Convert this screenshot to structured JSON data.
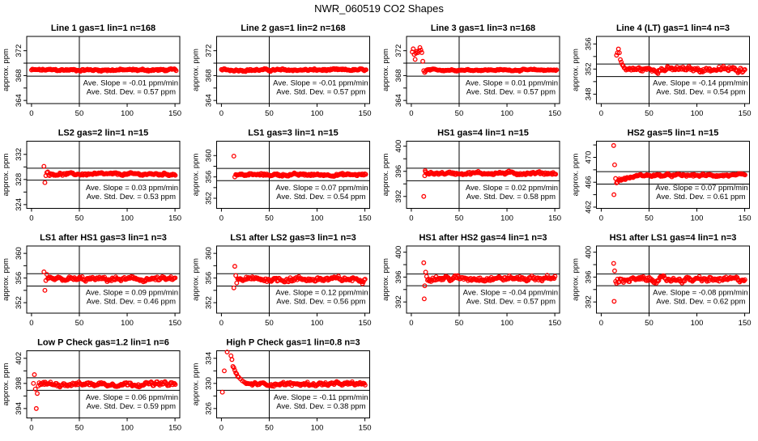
{
  "chart_data": {
    "type": "scatter",
    "title": "NWR_060519  CO2 Shapes",
    "ylabel": "approx. ppm",
    "xlim": [
      -5,
      155
    ],
    "xticks": [
      "0",
      "50",
      "100",
      "150"
    ],
    "vline_x": 50,
    "marker_color": "#ff0000",
    "panels": [
      {
        "title": "Line 1 gas=1 lin=1 n=168",
        "ylim": [
          363.5,
          374.3
        ],
        "yticks": [
          364,
          366,
          368,
          370,
          372
        ],
        "ylabels": [
          "364",
          "368",
          "372"
        ],
        "hlines": [
          370.0,
          367.9
        ],
        "early": [],
        "steady": {
          "from": 0,
          "to": 152,
          "mean": 368.9,
          "spread": 0.22
        },
        "slope_text": "Ave. Slope =  -0.01  ppm/min",
        "std_text": "Ave. Std. Dev. =  0.57  ppm"
      },
      {
        "title": "Line 2 gas=1 lin=2 n=168",
        "ylim": [
          363.5,
          374.3
        ],
        "yticks": [
          364,
          366,
          368,
          370,
          372
        ],
        "ylabels": [
          "364",
          "368",
          "372"
        ],
        "hlines": [
          370.0,
          367.9
        ],
        "early": [],
        "steady": {
          "from": 0,
          "to": 152,
          "mean": 368.9,
          "spread": 0.22
        },
        "slope_text": "Ave. Slope =  -0.01  ppm/min",
        "std_text": "Ave. Std. Dev. =  0.57  ppm"
      },
      {
        "title": "Line 3 gas=1 lin=3 n=168",
        "ylim": [
          363.5,
          374.3
        ],
        "yticks": [
          364,
          366,
          368,
          370,
          372
        ],
        "ylabels": [
          "364",
          "368",
          "372"
        ],
        "hlines": [
          370.0,
          367.9
        ],
        "early": [
          [
            1,
            371.8
          ],
          [
            2,
            372.3
          ],
          [
            3,
            371.4
          ],
          [
            4,
            370.6
          ],
          [
            5,
            371.6
          ],
          [
            6,
            371.9
          ],
          [
            7,
            371.7
          ],
          [
            8,
            372.0
          ],
          [
            9,
            372.5
          ],
          [
            10,
            372.1
          ],
          [
            11,
            371.7
          ],
          [
            12,
            370.3
          ],
          [
            13,
            368.8
          ],
          [
            14,
            368.5
          ],
          [
            15,
            368.7
          ]
        ],
        "steady": {
          "from": 16,
          "to": 152,
          "mean": 368.9,
          "spread": 0.15
        },
        "slope_text": "Ave. Slope =  0.01  ppm/min",
        "std_text": "Ave. Std. Dev. =  0.57  ppm"
      },
      {
        "title": "Line 4 (LT) gas=1 lin=4 n=3",
        "ylim": [
          346.5,
          357.2
        ],
        "yticks": [
          348,
          350,
          352,
          354,
          356
        ],
        "ylabels": [
          "348",
          "352",
          "356"
        ],
        "hlines": [
          352.8,
          350.8
        ],
        "early": [
          [
            16,
            354.2
          ],
          [
            17,
            354.6
          ],
          [
            18,
            355.2
          ],
          [
            19,
            354.6
          ],
          [
            20,
            353.5
          ],
          [
            21,
            353.1
          ],
          [
            22,
            352.7
          ],
          [
            23,
            352.5
          ],
          [
            24,
            352.2
          ],
          [
            25,
            352.1
          ]
        ],
        "steady": {
          "from": 26,
          "to": 151,
          "mean": 351.95,
          "spread": 0.5
        },
        "slope_text": "Ave. Slope =  -0.14  ppm/min",
        "std_text": "Ave. Std. Dev. =  0.54  ppm"
      },
      {
        "title": "LS2 gas=2 lin=1 n=15",
        "ylim": [
          323.4,
          334.1
        ],
        "yticks": [
          324,
          326,
          328,
          330,
          332
        ],
        "ylabels": [
          "324",
          "328",
          "332"
        ],
        "hlines": [
          329.8,
          327.9
        ],
        "early": [
          [
            13,
            330.1
          ],
          [
            14,
            327.5
          ],
          [
            15,
            328.6
          ],
          [
            16,
            329.1
          ],
          [
            17,
            329.2
          ]
        ],
        "steady": {
          "from": 18,
          "to": 151,
          "mean": 328.85,
          "spread": 0.25
        },
        "slope_text": "Ave. Slope =  0.03  ppm/min",
        "std_text": "Ave. Std. Dev. =  0.53  ppm"
      },
      {
        "title": "LS1 gas=3 lin=1 n=15",
        "ylim": [
          350.1,
          362.7
        ],
        "yticks": [
          352,
          354,
          356,
          358,
          360
        ],
        "ylabels": [
          "352",
          "356",
          "360"
        ],
        "hlines": [
          357.6,
          355.3
        ],
        "early": [
          [
            13,
            359.9
          ],
          [
            14,
            356.0
          ]
        ],
        "steady": {
          "from": 15,
          "to": 151,
          "mean": 356.4,
          "spread": 0.3
        },
        "slope_text": "Ave. Slope =  0.07  ppm/min",
        "std_text": "Ave. Std. Dev. =  0.54  ppm"
      },
      {
        "title": "HS1 gas=4 lin=1 n=15",
        "ylim": [
          390.1,
          400.8
        ],
        "yticks": [
          392,
          394,
          396,
          398,
          400
        ],
        "ylabels": [
          "392",
          "396",
          "400"
        ],
        "hlines": [
          396.5,
          394.5
        ],
        "early": [
          [
            13,
            392.0
          ],
          [
            14,
            395.3
          ],
          [
            14.5,
            396.1
          ]
        ],
        "steady": {
          "from": 15,
          "to": 151,
          "mean": 395.7,
          "spread": 0.3
        },
        "slope_text": "Ave. Slope =  0.02  ppm/min",
        "std_text": "Ave. Std. Dev. =  0.58  ppm"
      },
      {
        "title": "HS2 gas=5 lin=1 n=15",
        "ylim": [
          461.8,
          472.6
        ],
        "yticks": [
          462,
          464,
          466,
          468,
          470,
          472
        ],
        "ylabels": [
          "462",
          "466",
          "470"
        ],
        "hlines": [
          467.7,
          465.7
        ],
        "early": [
          [
            13,
            471.9
          ],
          [
            14,
            468.8
          ],
          [
            13.3,
            464.0
          ],
          [
            15,
            466.6
          ],
          [
            16,
            465.9
          ],
          [
            17,
            466.0
          ]
        ],
        "steady": {
          "from": 18,
          "to": 151,
          "mean": 467.1,
          "spread": 0.25,
          "ramp_from": 466.3,
          "ramp_len": 22
        },
        "slope_text": "Ave. Slope =  0.07  ppm/min",
        "std_text": "Ave. Std. Dev. =  0.61  ppm"
      },
      {
        "title": "LS1 after HS1 gas=3 lin=1 n=3",
        "ylim": [
          350.3,
          361.2
        ],
        "yticks": [
          352,
          354,
          356,
          358,
          360
        ],
        "ylabels": [
          "352",
          "356",
          "360"
        ],
        "hlines": [
          356.7,
          354.7
        ],
        "early": [
          [
            13,
            357.0
          ],
          [
            14,
            354.0
          ],
          [
            15,
            355.6
          ],
          [
            16,
            356.6
          ]
        ],
        "steady": {
          "from": 17,
          "to": 151,
          "mean": 355.8,
          "spread": 0.45
        },
        "slope_text": "Ave. Slope =  0.09  ppm/min",
        "std_text": "Ave. Std. Dev. =  0.46  ppm"
      },
      {
        "title": "LS1 after LS2 gas=3 lin=1 n=3",
        "ylim": [
          350.3,
          361.2
        ],
        "yticks": [
          352,
          354,
          356,
          358,
          360
        ],
        "ylabels": [
          "352",
          "356",
          "360"
        ],
        "hlines": [
          356.7,
          354.7
        ],
        "early": [
          [
            13,
            354.4
          ],
          [
            14,
            357.9
          ],
          [
            15,
            356.4
          ],
          [
            16,
            355.2
          ]
        ],
        "steady": {
          "from": 17,
          "to": 151,
          "mean": 355.8,
          "spread": 0.5
        },
        "slope_text": "Ave. Slope =  0.12  ppm/min",
        "std_text": "Ave. Std. Dev. =  0.56  ppm"
      },
      {
        "title": "HS1 after HS2 gas=4 lin=1 n=3",
        "ylim": [
          390.2,
          401.0
        ],
        "yticks": [
          392,
          394,
          396,
          398,
          400
        ],
        "ylabels": [
          "392",
          "396",
          "400"
        ],
        "hlines": [
          396.5,
          394.6
        ],
        "early": [
          [
            13,
            398.3
          ],
          [
            13.5,
            392.5
          ],
          [
            14,
            394.6
          ],
          [
            15,
            396.8
          ],
          [
            16,
            396.1
          ]
        ],
        "steady": {
          "from": 17,
          "to": 151,
          "mean": 395.8,
          "spread": 0.5
        },
        "slope_text": "Ave. Slope =  -0.04  ppm/min",
        "std_text": "Ave. Std. Dev. =  0.57  ppm"
      },
      {
        "title": "HS1 after LS1 gas=4 lin=1 n=3",
        "ylim": [
          390.2,
          401.0
        ],
        "yticks": [
          392,
          394,
          396,
          398,
          400
        ],
        "ylabels": [
          "392",
          "396",
          "400"
        ],
        "hlines": [
          396.5,
          394.6
        ],
        "early": [
          [
            13,
            398.2
          ],
          [
            13.5,
            392.1
          ],
          [
            14,
            397.0
          ],
          [
            15,
            395.3
          ],
          [
            16,
            395.0
          ]
        ],
        "steady": {
          "from": 17,
          "to": 151,
          "mean": 395.6,
          "spread": 0.5
        },
        "slope_text": "Ave. Slope =  -0.08  ppm/min",
        "std_text": "Ave. Std. Dev. =  0.62  ppm"
      },
      {
        "title": "Low P Check gas=1.2 lin=1 n=6",
        "ylim": [
          392.5,
          403.2
        ],
        "yticks": [
          394,
          396,
          398,
          400,
          402
        ],
        "ylabels": [
          "394",
          "398",
          "402"
        ],
        "hlines": [
          398.9,
          396.9
        ],
        "early": [
          [
            2,
            398.0
          ],
          [
            3,
            399.4
          ],
          [
            4,
            397.1
          ],
          [
            6,
            396.4
          ],
          [
            5,
            394.0
          ],
          [
            7,
            397.6
          ],
          [
            8,
            398.1
          ]
        ],
        "steady": {
          "from": 9,
          "to": 151,
          "mean": 397.9,
          "spread": 0.4
        },
        "slope_text": "Ave. Slope =  0.06  ppm/min",
        "std_text": "Ave. Std. Dev. =  0.59  ppm"
      },
      {
        "title": "High P Check gas=1 lin=0.8 n=3",
        "ylim": [
          324.5,
          335.2
        ],
        "yticks": [
          326,
          328,
          330,
          332,
          334
        ],
        "ylabels": [
          "326",
          "330",
          "334"
        ],
        "hlines": [
          330.9,
          328.9
        ],
        "early": [
          [
            1,
            328.6
          ],
          [
            3,
            332.0
          ],
          [
            6,
            335.0
          ],
          [
            10,
            334.4
          ],
          [
            11,
            333.8
          ],
          [
            12,
            332.7
          ],
          [
            13,
            332.5
          ],
          [
            14,
            332.1
          ],
          [
            15,
            331.7
          ],
          [
            16,
            331.5
          ],
          [
            17,
            331.1
          ],
          [
            18,
            331.0
          ],
          [
            20,
            330.7
          ],
          [
            22,
            330.4
          ],
          [
            24,
            330.2
          ],
          [
            25,
            330.1
          ]
        ],
        "steady": {
          "from": 26,
          "to": 151,
          "mean": 329.9,
          "spread": 0.35
        },
        "slope_text": "Ave. Slope =  -0.11  ppm/min",
        "std_text": "Ave. Std. Dev. =  0.38  ppm"
      }
    ]
  }
}
